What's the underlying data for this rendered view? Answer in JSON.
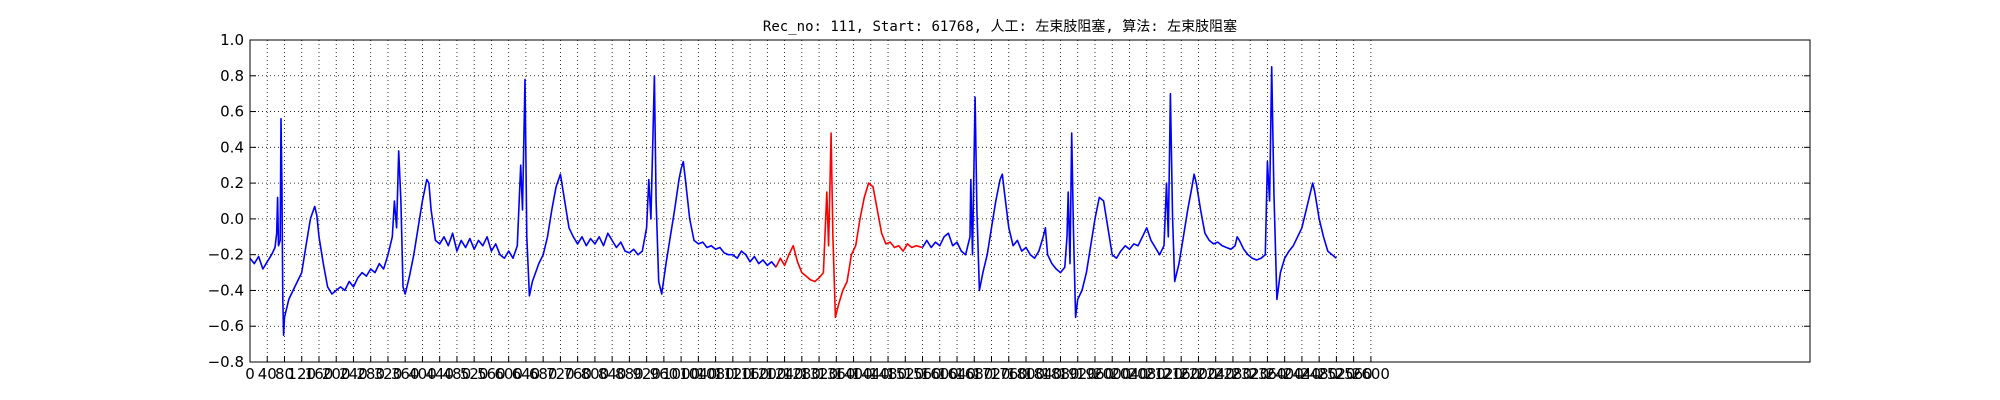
{
  "chart_data": {
    "type": "line",
    "title": "Rec_no: 111, Start: 61768, 人工: 左束肢阻塞, 算法: 左束肢阻塞",
    "xlabel": "",
    "ylabel": "",
    "xlim": [
      0,
      3600
    ],
    "ylim": [
      -0.8,
      1.0
    ],
    "grid": true,
    "grid_style": "dotted",
    "y_ticks": [
      "1.0",
      "0.8",
      "0.6",
      "0.4",
      "0.2",
      "0.0",
      "−0.2",
      "−0.4",
      "−0.6",
      "−0.8"
    ],
    "x_ticks": [
      "0",
      "40",
      "80",
      "120",
      "160",
      "200",
      "240",
      "280",
      "320",
      "360",
      "400",
      "440",
      "480",
      "520",
      "560",
      "600",
      "640",
      "680",
      "720",
      "760",
      "800",
      "840",
      "880",
      "920",
      "960",
      "1000",
      "1040",
      "1080",
      "1120",
      "1160",
      "1200",
      "1240",
      "1280",
      "1320",
      "1360",
      "1400",
      "1440",
      "1480",
      "1520",
      "1560",
      "1600",
      "1640",
      "1680",
      "1720",
      "1760",
      "1800",
      "1840",
      "1880",
      "1920",
      "1960",
      "2000",
      "2040",
      "2080",
      "2120",
      "2160",
      "2200",
      "2240",
      "2280",
      "2320",
      "2360",
      "2400",
      "2440",
      "2480",
      "2520",
      "2560",
      "2600"
    ],
    "series": [
      {
        "color": "#0000ff",
        "segment": "before",
        "x_range": [
          0,
          1220
        ],
        "points": [
          [
            0,
            -0.22
          ],
          [
            10,
            -0.25
          ],
          [
            20,
            -0.21
          ],
          [
            30,
            -0.28
          ],
          [
            40,
            -0.24
          ],
          [
            50,
            -0.2
          ],
          [
            58,
            -0.16
          ],
          [
            62,
            -0.08
          ],
          [
            64,
            0.12
          ],
          [
            66,
            -0.15
          ],
          [
            70,
            -0.12
          ],
          [
            72,
            0.56
          ],
          [
            74,
            0.2
          ],
          [
            76,
            -0.45
          ],
          [
            78,
            -0.65
          ],
          [
            80,
            -0.55
          ],
          [
            90,
            -0.45
          ],
          [
            100,
            -0.4
          ],
          [
            110,
            -0.35
          ],
          [
            120,
            -0.3
          ],
          [
            130,
            -0.15
          ],
          [
            140,
            0.0
          ],
          [
            150,
            0.07
          ],
          [
            155,
            0.02
          ],
          [
            160,
            -0.1
          ],
          [
            170,
            -0.25
          ],
          [
            180,
            -0.38
          ],
          [
            190,
            -0.42
          ],
          [
            200,
            -0.4
          ],
          [
            210,
            -0.38
          ],
          [
            220,
            -0.4
          ],
          [
            230,
            -0.35
          ],
          [
            240,
            -0.38
          ],
          [
            250,
            -0.33
          ],
          [
            260,
            -0.3
          ],
          [
            270,
            -0.32
          ],
          [
            280,
            -0.28
          ],
          [
            290,
            -0.3
          ],
          [
            300,
            -0.25
          ],
          [
            310,
            -0.28
          ],
          [
            320,
            -0.2
          ],
          [
            330,
            -0.1
          ],
          [
            335,
            0.1
          ],
          [
            340,
            -0.05
          ],
          [
            345,
            0.38
          ],
          [
            350,
            0.1
          ],
          [
            355,
            -0.38
          ],
          [
            360,
            -0.42
          ],
          [
            370,
            -0.32
          ],
          [
            380,
            -0.2
          ],
          [
            390,
            -0.05
          ],
          [
            400,
            0.1
          ],
          [
            410,
            0.22
          ],
          [
            415,
            0.2
          ],
          [
            420,
            0.05
          ],
          [
            430,
            -0.12
          ],
          [
            440,
            -0.14
          ],
          [
            450,
            -0.1
          ],
          [
            460,
            -0.15
          ],
          [
            470,
            -0.08
          ],
          [
            480,
            -0.18
          ],
          [
            490,
            -0.12
          ],
          [
            500,
            -0.16
          ],
          [
            510,
            -0.11
          ],
          [
            520,
            -0.17
          ],
          [
            530,
            -0.12
          ],
          [
            540,
            -0.15
          ],
          [
            550,
            -0.1
          ],
          [
            560,
            -0.18
          ],
          [
            570,
            -0.14
          ],
          [
            580,
            -0.2
          ],
          [
            590,
            -0.22
          ],
          [
            600,
            -0.18
          ],
          [
            610,
            -0.22
          ],
          [
            620,
            -0.15
          ],
          [
            628,
            0.3
          ],
          [
            632,
            0.05
          ],
          [
            638,
            0.78
          ],
          [
            642,
            -0.1
          ],
          [
            648,
            -0.43
          ],
          [
            655,
            -0.35
          ],
          [
            670,
            -0.25
          ],
          [
            680,
            -0.2
          ],
          [
            690,
            -0.1
          ],
          [
            700,
            0.05
          ],
          [
            710,
            0.18
          ],
          [
            720,
            0.25
          ],
          [
            730,
            0.1
          ],
          [
            740,
            -0.05
          ],
          [
            750,
            -0.1
          ],
          [
            760,
            -0.14
          ],
          [
            770,
            -0.1
          ],
          [
            780,
            -0.15
          ],
          [
            790,
            -0.11
          ],
          [
            800,
            -0.14
          ],
          [
            810,
            -0.1
          ],
          [
            820,
            -0.15
          ],
          [
            830,
            -0.08
          ],
          [
            840,
            -0.12
          ],
          [
            850,
            -0.16
          ],
          [
            860,
            -0.13
          ],
          [
            870,
            -0.18
          ],
          [
            880,
            -0.19
          ],
          [
            890,
            -0.17
          ],
          [
            900,
            -0.2
          ],
          [
            910,
            -0.18
          ],
          [
            920,
            -0.05
          ],
          [
            925,
            0.22
          ],
          [
            930,
            0.0
          ],
          [
            938,
            0.8
          ],
          [
            942,
            0.1
          ],
          [
            948,
            -0.35
          ],
          [
            955,
            -0.42
          ],
          [
            965,
            -0.25
          ],
          [
            975,
            -0.1
          ],
          [
            985,
            0.05
          ],
          [
            995,
            0.22
          ],
          [
            1000,
            0.28
          ],
          [
            1005,
            0.32
          ],
          [
            1010,
            0.22
          ],
          [
            1020,
            0.0
          ],
          [
            1030,
            -0.12
          ],
          [
            1040,
            -0.14
          ],
          [
            1050,
            -0.13
          ],
          [
            1060,
            -0.16
          ],
          [
            1070,
            -0.15
          ],
          [
            1080,
            -0.17
          ],
          [
            1090,
            -0.16
          ],
          [
            1100,
            -0.19
          ],
          [
            1110,
            -0.2
          ],
          [
            1120,
            -0.2
          ],
          [
            1130,
            -0.22
          ],
          [
            1140,
            -0.18
          ],
          [
            1150,
            -0.2
          ],
          [
            1160,
            -0.24
          ],
          [
            1170,
            -0.21
          ],
          [
            1180,
            -0.25
          ],
          [
            1190,
            -0.23
          ],
          [
            1200,
            -0.26
          ],
          [
            1210,
            -0.24
          ],
          [
            1220,
            -0.27
          ]
        ]
      },
      {
        "color": "#ff0000",
        "segment": "highlighted beat",
        "x_range": [
          1220,
          1560
        ],
        "points": [
          [
            1220,
            -0.27
          ],
          [
            1230,
            -0.22
          ],
          [
            1240,
            -0.26
          ],
          [
            1250,
            -0.2
          ],
          [
            1260,
            -0.15
          ],
          [
            1270,
            -0.24
          ],
          [
            1280,
            -0.3
          ],
          [
            1290,
            -0.32
          ],
          [
            1300,
            -0.34
          ],
          [
            1310,
            -0.35
          ],
          [
            1320,
            -0.33
          ],
          [
            1330,
            -0.3
          ],
          [
            1338,
            0.15
          ],
          [
            1342,
            -0.15
          ],
          [
            1348,
            0.48
          ],
          [
            1352,
            -0.1
          ],
          [
            1358,
            -0.55
          ],
          [
            1365,
            -0.48
          ],
          [
            1375,
            -0.4
          ],
          [
            1385,
            -0.35
          ],
          [
            1395,
            -0.2
          ],
          [
            1405,
            -0.15
          ],
          [
            1415,
            0.0
          ],
          [
            1425,
            0.12
          ],
          [
            1435,
            0.2
          ],
          [
            1445,
            0.18
          ],
          [
            1455,
            0.05
          ],
          [
            1465,
            -0.08
          ],
          [
            1475,
            -0.14
          ],
          [
            1485,
            -0.13
          ],
          [
            1495,
            -0.16
          ],
          [
            1505,
            -0.15
          ],
          [
            1515,
            -0.18
          ],
          [
            1525,
            -0.14
          ],
          [
            1535,
            -0.16
          ],
          [
            1545,
            -0.15
          ],
          [
            1560,
            -0.16
          ]
        ]
      },
      {
        "color": "#0000ff",
        "segment": "after",
        "x_range": [
          1560,
          2590
        ],
        "points": [
          [
            1560,
            -0.16
          ],
          [
            1570,
            -0.12
          ],
          [
            1580,
            -0.16
          ],
          [
            1590,
            -0.13
          ],
          [
            1600,
            -0.15
          ],
          [
            1610,
            -0.1
          ],
          [
            1620,
            -0.08
          ],
          [
            1630,
            -0.15
          ],
          [
            1640,
            -0.13
          ],
          [
            1650,
            -0.18
          ],
          [
            1660,
            -0.2
          ],
          [
            1670,
            -0.1
          ],
          [
            1672,
            0.22
          ],
          [
            1676,
            -0.2
          ],
          [
            1682,
            0.68
          ],
          [
            1686,
            0.05
          ],
          [
            1692,
            -0.4
          ],
          [
            1700,
            -0.3
          ],
          [
            1710,
            -0.2
          ],
          [
            1720,
            -0.05
          ],
          [
            1730,
            0.1
          ],
          [
            1740,
            0.22
          ],
          [
            1745,
            0.25
          ],
          [
            1750,
            0.15
          ],
          [
            1760,
            -0.05
          ],
          [
            1770,
            -0.15
          ],
          [
            1780,
            -0.12
          ],
          [
            1790,
            -0.18
          ],
          [
            1800,
            -0.16
          ],
          [
            1810,
            -0.2
          ],
          [
            1820,
            -0.22
          ],
          [
            1830,
            -0.18
          ],
          [
            1840,
            -0.1
          ],
          [
            1845,
            -0.05
          ],
          [
            1850,
            -0.2
          ],
          [
            1860,
            -0.25
          ],
          [
            1870,
            -0.28
          ],
          [
            1880,
            -0.3
          ],
          [
            1890,
            -0.27
          ],
          [
            1895,
            -0.1
          ],
          [
            1898,
            0.15
          ],
          [
            1902,
            -0.25
          ],
          [
            1906,
            0.48
          ],
          [
            1910,
            -0.05
          ],
          [
            1915,
            -0.55
          ],
          [
            1920,
            -0.45
          ],
          [
            1930,
            -0.4
          ],
          [
            1940,
            -0.3
          ],
          [
            1950,
            -0.15
          ],
          [
            1960,
            0.0
          ],
          [
            1970,
            0.12
          ],
          [
            1980,
            0.1
          ],
          [
            1990,
            -0.05
          ],
          [
            2000,
            -0.2
          ],
          [
            2010,
            -0.22
          ],
          [
            2020,
            -0.18
          ],
          [
            2030,
            -0.15
          ],
          [
            2040,
            -0.17
          ],
          [
            2050,
            -0.14
          ],
          [
            2060,
            -0.15
          ],
          [
            2070,
            -0.1
          ],
          [
            2080,
            -0.05
          ],
          [
            2090,
            -0.12
          ],
          [
            2100,
            -0.16
          ],
          [
            2110,
            -0.2
          ],
          [
            2120,
            -0.15
          ],
          [
            2126,
            0.2
          ],
          [
            2130,
            -0.1
          ],
          [
            2135,
            0.7
          ],
          [
            2140,
            0.0
          ],
          [
            2145,
            -0.35
          ],
          [
            2155,
            -0.25
          ],
          [
            2165,
            -0.1
          ],
          [
            2175,
            0.05
          ],
          [
            2185,
            0.18
          ],
          [
            2190,
            0.25
          ],
          [
            2195,
            0.2
          ],
          [
            2205,
            0.05
          ],
          [
            2215,
            -0.08
          ],
          [
            2225,
            -0.12
          ],
          [
            2235,
            -0.14
          ],
          [
            2245,
            -0.13
          ],
          [
            2255,
            -0.15
          ],
          [
            2265,
            -0.16
          ],
          [
            2275,
            -0.17
          ],
          [
            2285,
            -0.15
          ],
          [
            2290,
            -0.1
          ],
          [
            2295,
            -0.12
          ],
          [
            2305,
            -0.17
          ],
          [
            2315,
            -0.2
          ],
          [
            2325,
            -0.22
          ],
          [
            2335,
            -0.23
          ],
          [
            2345,
            -0.22
          ],
          [
            2355,
            -0.2
          ],
          [
            2360,
            0.32
          ],
          [
            2365,
            0.1
          ],
          [
            2370,
            0.85
          ],
          [
            2375,
            0.15
          ],
          [
            2382,
            -0.45
          ],
          [
            2390,
            -0.3
          ],
          [
            2400,
            -0.22
          ],
          [
            2410,
            -0.18
          ],
          [
            2420,
            -0.15
          ],
          [
            2430,
            -0.1
          ],
          [
            2440,
            -0.05
          ],
          [
            2450,
            0.05
          ],
          [
            2460,
            0.15
          ],
          [
            2465,
            0.2
          ],
          [
            2470,
            0.15
          ],
          [
            2480,
            0.0
          ],
          [
            2490,
            -0.1
          ],
          [
            2500,
            -0.18
          ],
          [
            2510,
            -0.2
          ],
          [
            2520,
            -0.22
          ]
        ]
      }
    ]
  }
}
